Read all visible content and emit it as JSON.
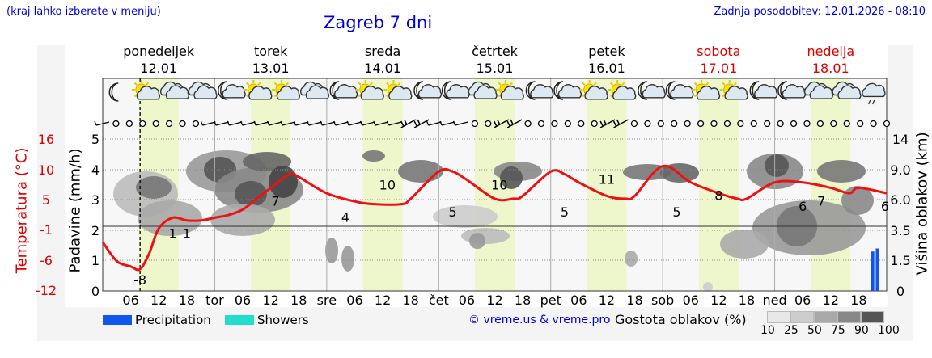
{
  "header": {
    "left_note": "(kraj lahko izberete v meniju)",
    "title": "Zagreb 7 dni",
    "updated": "Zadnja posodobitev: 12.01.2026 - 08:10"
  },
  "days": [
    {
      "name": "ponedeljek",
      "date": "12.01",
      "weekend": false
    },
    {
      "name": "torek",
      "date": "13.01",
      "weekend": false
    },
    {
      "name": "sreda",
      "date": "14.01",
      "weekend": false
    },
    {
      "name": "četrtek",
      "date": "15.01",
      "weekend": false
    },
    {
      "name": "petek",
      "date": "16.01",
      "weekend": false
    },
    {
      "name": "sobota",
      "date": "17.01",
      "weekend": true
    },
    {
      "name": "nedelja",
      "date": "18.01",
      "weekend": true
    }
  ],
  "weather_icons": [
    "crescent-moon",
    "sun-cloud",
    "cloud",
    "cloud",
    "moon-cloud",
    "sun-cloud",
    "sun-cloud",
    "cloud",
    "moon-cloud",
    "sun-cloud",
    "sun-cloud",
    "moon-cloud",
    "moon-cloud",
    "cloud",
    "sun-cloud",
    "moon-cloud",
    "moon-cloud",
    "sun-cloud",
    "sun-cloud",
    "moon-cloud",
    "moon-cloud",
    "sun-cloud",
    "sun-cloud",
    "moon-cloud",
    "moon-cloud",
    "cloud",
    "cloud",
    "cloud-drizzle"
  ],
  "wind_symbols": [
    "arrow",
    "calm",
    "calm",
    "calm",
    "calm",
    "calm",
    "calm",
    "calm",
    "arrow",
    "arrow",
    "arrow",
    "arrow",
    "arrow",
    "arrow",
    "arrow",
    "arrow",
    "arrow",
    "arrow",
    "arrow",
    "arrow",
    "arrow",
    "arrow",
    "arrow",
    "strong",
    "strong",
    "arrow",
    "arrow",
    "arrow",
    "calm",
    "calm",
    "strong",
    "strong",
    "calm",
    "calm",
    "calm",
    "calm",
    "calm",
    "calm",
    "strong",
    "strong",
    "calm",
    "calm",
    "calm",
    "calm",
    "calm",
    "calm",
    "calm",
    "calm",
    "calm",
    "calm",
    "calm",
    "calm",
    "calm",
    "calm",
    "calm",
    "calm",
    "calm",
    "calm",
    "calm",
    "calm"
  ],
  "labels": {
    "temperature_axis": "Temperatura (°C)",
    "precip_axis": "Padavine (mm/h)",
    "cloud_height_axis": "Višina oblakov (km)",
    "legend_precip": "Precipitation",
    "legend_showers": "Showers",
    "credit": "© vreme.us & vreme.pro",
    "cloud_density": "Gostota oblakov (%)"
  },
  "colors": {
    "temperature": "#ee1111",
    "precipitation": "#1155ee",
    "showers": "#22ddcc",
    "daylight": "#eef7cc",
    "title_blue": "#0000dd",
    "weekend_red": "#dd0000"
  },
  "cloud_density_scale": [
    10,
    25,
    50,
    75,
    90,
    100
  ],
  "chart_data": {
    "type": "line",
    "title": "Zagreb 7 dni",
    "x_ticks": [
      "06",
      "12",
      "18",
      "tor",
      "06",
      "12",
      "18",
      "sre",
      "06",
      "12",
      "18",
      "čet",
      "06",
      "12",
      "18",
      "pet",
      "06",
      "12",
      "18",
      "sob",
      "06",
      "12",
      "18",
      "ned",
      "06",
      "12",
      "18"
    ],
    "left_axis_temperature_ticks": [
      16,
      10,
      5,
      -1,
      -6,
      -12
    ],
    "left_axis_precip_ticks": [
      5,
      4,
      3,
      2,
      1,
      0
    ],
    "right_axis_cloud_height_ticks": [
      "14",
      "9.0",
      "6.0",
      "3.5",
      "1.5",
      "0"
    ],
    "temperature_hours": [
      0,
      3,
      6,
      8,
      10,
      12,
      15,
      18,
      21,
      24,
      27,
      30,
      33,
      36,
      40,
      42,
      48,
      54,
      58,
      64,
      66,
      72,
      75,
      78,
      84,
      88,
      90,
      96,
      99,
      102,
      108,
      112,
      114,
      120,
      126,
      132,
      136,
      138,
      144,
      150,
      156,
      160,
      162,
      168
    ],
    "temperature_values": [
      -3,
      -6.5,
      -7.5,
      -8,
      -5,
      -0.5,
      1.5,
      1,
      1,
      1.5,
      2,
      3,
      5,
      7,
      9.5,
      9,
      6,
      4.5,
      4,
      4,
      5,
      10,
      10,
      8.5,
      5,
      5,
      5.5,
      10,
      9.5,
      8,
      5.5,
      5,
      5.5,
      11,
      8,
      6,
      5,
      5,
      8,
      8,
      7,
      6,
      7,
      6
    ],
    "temperature_labels": [
      {
        "hour": 8,
        "value": "-8"
      },
      {
        "hour": 15,
        "value": "1"
      },
      {
        "hour": 18,
        "value": "1"
      },
      {
        "hour": 37,
        "value": "7"
      },
      {
        "hour": 52,
        "value": "4"
      },
      {
        "hour": 61,
        "value": "10"
      },
      {
        "hour": 75,
        "value": "5"
      },
      {
        "hour": 85,
        "value": "10"
      },
      {
        "hour": 99,
        "value": "5"
      },
      {
        "hour": 108,
        "value": "11"
      },
      {
        "hour": 123,
        "value": "5"
      },
      {
        "hour": 132,
        "value": "8"
      },
      {
        "hour": 150,
        "value": "6"
      },
      {
        "hour": 154,
        "value": "7"
      },
      {
        "hour": 168,
        "value": "6"
      }
    ],
    "precipitation_mm_h": [
      {
        "hour": 165,
        "value": 1.3
      },
      {
        "hour": 166,
        "value": 1.4
      }
    ],
    "now_marker_hour": 8
  }
}
